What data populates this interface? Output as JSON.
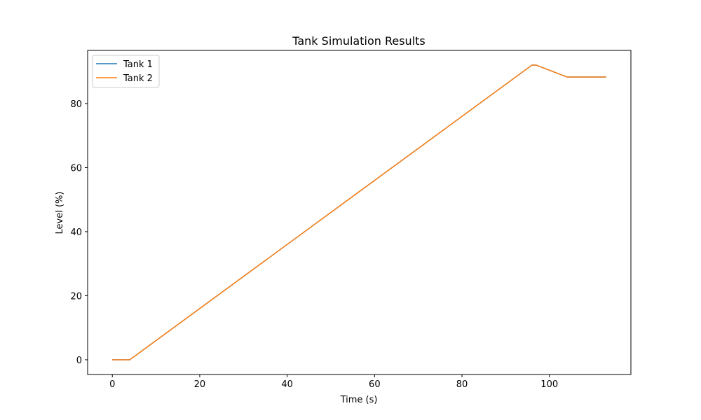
{
  "chart_data": {
    "type": "line",
    "title": "Tank Simulation Results",
    "xlabel": "Time (s)",
    "ylabel": "Level (%)",
    "xlim": [
      -5.65,
      118.65
    ],
    "ylim": [
      -4.6,
      96.6
    ],
    "x_ticks": [
      0,
      20,
      40,
      60,
      80,
      100
    ],
    "y_ticks": [
      0,
      20,
      40,
      60,
      80
    ],
    "grid": false,
    "legend_position": "upper left",
    "series": [
      {
        "name": "Tank 1",
        "color": "#1f77b4",
        "x": [
          0,
          4,
          96,
          97,
          104,
          113
        ],
        "y": [
          0,
          0,
          92,
          92,
          88.3,
          88.3
        ]
      },
      {
        "name": "Tank 2",
        "color": "#ff7f0e",
        "x": [
          0,
          4,
          96,
          97,
          104,
          113
        ],
        "y": [
          0,
          0,
          92,
          92,
          88.3,
          88.3
        ]
      }
    ]
  }
}
